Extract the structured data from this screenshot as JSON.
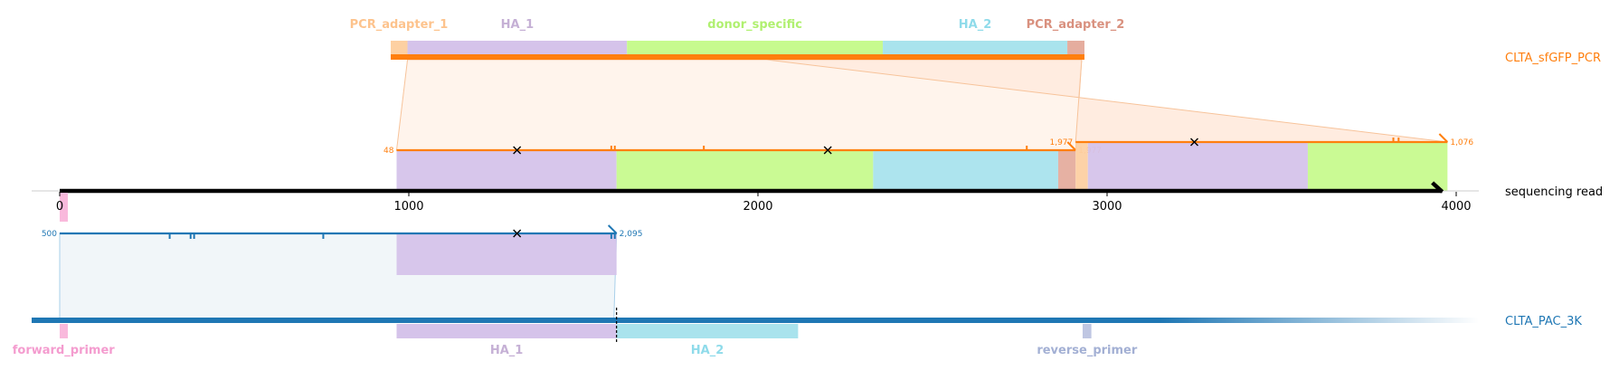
{
  "chart_data": {
    "type": "alignment-diagram",
    "title": "",
    "axis": {
      "name": "sequencing read",
      "range": [
        0,
        3980
      ],
      "ticks": [
        0,
        1000,
        2000,
        3000,
        4000
      ],
      "tick_labels": [
        "0",
        "1000",
        "2000",
        "3000",
        "4000"
      ]
    },
    "tracks": {
      "top": {
        "name": "CLTA_sfGFP_PCR",
        "color": "#ff7f0e",
        "features": [
          {
            "name": "PCR_adapter_1",
            "start": 0,
            "end": 48,
            "color": "#fdd0a2",
            "label_color": "#fdc38d"
          },
          {
            "name": "HA_1",
            "start": 48,
            "end": 676,
            "color": "#d5c3ea",
            "label_color": "#c5b0d5"
          },
          {
            "name": "donor_specific",
            "start": 676,
            "end": 1408,
            "color": "#c7fa8e",
            "label_color": "#b0f070"
          },
          {
            "name": "HA_2",
            "start": 1408,
            "end": 1936,
            "color": "#a9e3ed",
            "label_color": "#8fdbea"
          },
          {
            "name": "PCR_adapter_2",
            "start": 1936,
            "end": 1985,
            "color": "#e5ad9e",
            "label_color": "#d9917f"
          }
        ]
      },
      "read": {
        "name": "sequencing read",
        "color": "#000000",
        "primer_marks": [
          {
            "name": "forward_primer",
            "start": 0,
            "end": 25,
            "color": "#f9b9dc"
          }
        ]
      },
      "bottom": {
        "name": "CLTA_PAC_3K",
        "color": "#1f77b4",
        "cut_site": 1595,
        "features": [
          {
            "name": "forward_primer",
            "start": 0,
            "end": 22,
            "color": "#f9b9dc",
            "label_color": "#f49ccf"
          },
          {
            "name": "HA_1",
            "start": 965,
            "end": 1595,
            "color": "#d5c3ea",
            "label_color": "#c5b0d5"
          },
          {
            "name": "HA_2",
            "start": 1595,
            "end": 2115,
            "color": "#a9e3ed",
            "label_color": "#8fdbea"
          },
          {
            "name": "reverse_primer",
            "start": 2930,
            "end": 2955,
            "color": "#bfc6e2",
            "label_color": "#a3b0d4"
          }
        ]
      }
    },
    "alignments": [
      {
        "name": "alignment-1",
        "track": "top",
        "color": "#ff7f0e",
        "fill": "#fff4ec",
        "read_start": 965,
        "read_end": 2910,
        "ref_start": 48,
        "ref_end": 1977,
        "start_label": "48",
        "end_label": "1,977",
        "strand": "+",
        "mismatch_marks": [
          1580,
          1590,
          1845,
          2770
        ],
        "cross_marks": [
          1310,
          2200
        ],
        "features_on_read": [
          {
            "name": "HA_1",
            "start": 965,
            "end": 1595,
            "color": "#d5c3ea"
          },
          {
            "name": "donor_specific",
            "start": 1595,
            "end": 2330,
            "color": "#c7fa8e"
          },
          {
            "name": "HA_2",
            "start": 2330,
            "end": 2860,
            "color": "#a9e3ed"
          },
          {
            "name": "PCR_adapter_2",
            "start": 2860,
            "end": 2910,
            "color": "#e5ad9e"
          }
        ]
      },
      {
        "name": "alignment-2",
        "track": "top",
        "color": "#ff7f0e",
        "fill": "#ffece0",
        "read_start": 2910,
        "read_end": 3975,
        "ref_start": 1977,
        "ref_end": 1076,
        "start_label": "1,977",
        "end_label": "1,076",
        "strand": "+",
        "mismatch_marks": [
          3820,
          3835
        ],
        "cross_marks": [
          3250
        ],
        "features_on_read": [
          {
            "name": "PCR_adapter_1",
            "start": 2910,
            "end": 2945,
            "color": "#fdd0a2"
          },
          {
            "name": "HA_1",
            "start": 2945,
            "end": 3575,
            "color": "#d5c3ea"
          },
          {
            "name": "donor_specific",
            "start": 3575,
            "end": 3975,
            "color": "#c7fa8e"
          }
        ]
      },
      {
        "name": "alignment-3",
        "track": "bottom",
        "color": "#1f77b4",
        "fill": "#f1f6f9",
        "read_start": 0,
        "read_end": 1595,
        "ref_start": 500,
        "ref_end": 2095,
        "start_label": "500",
        "end_label": "2,095",
        "strand": "+",
        "mismatch_marks": [
          315,
          375,
          385,
          755,
          1580,
          1590
        ],
        "cross_marks": [
          1310
        ],
        "features_on_read": [
          {
            "name": "HA_1",
            "start": 965,
            "end": 1595,
            "color": "#d5c3ea"
          }
        ]
      }
    ],
    "legend": "right"
  }
}
